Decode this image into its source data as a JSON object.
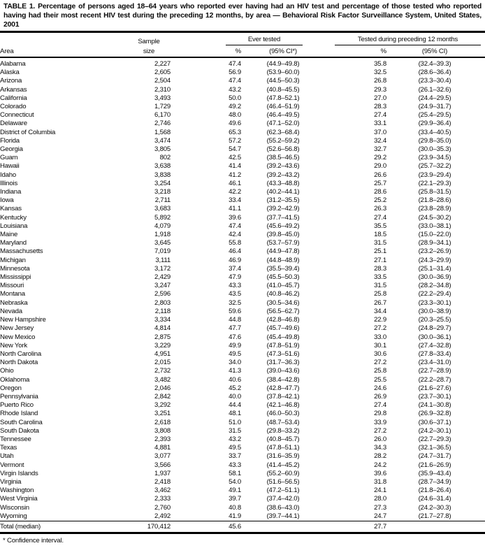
{
  "title": "TABLE 1. Percentage of persons aged 18–64 years who reported ever having had an HIV test and percentage of those tested who reported having had their most recent HIV test during the preceding 12 months, by area — Behavioral Risk Factor Surveillance System, United States, 2001",
  "footnote": "* Confidence interval.",
  "table": {
    "headers": {
      "area": "Area",
      "sample_line1": "Sample",
      "sample_line2": "size",
      "ever_tested": "Ever tested",
      "tested_12mo": "Tested during preceding 12 months",
      "pct_ever": "%",
      "ci_ever": "(95% CI*)",
      "pct_12mo": "%",
      "ci_12mo": "(95% CI)"
    },
    "rows": [
      [
        "Alabama",
        "2,227",
        "47.4",
        "(44.9–49.8)",
        "35.8",
        "(32.4–39.3)"
      ],
      [
        "Alaska",
        "2,605",
        "56.9",
        "(53.9–60.0)",
        "32.5",
        "(28.6–36.4)"
      ],
      [
        "Arizona",
        "2,504",
        "47.4",
        "(44.5–50.3)",
        "26.8",
        "(23.3–30.4)"
      ],
      [
        "Arkansas",
        "2,310",
        "43.2",
        "(40.8–45.5)",
        "29.3",
        "(26.1–32.6)"
      ],
      [
        "California",
        "3,493",
        "50.0",
        "(47.8–52.1)",
        "27.0",
        "(24.4–29.5)"
      ],
      [
        "Colorado",
        "1,729",
        "49.2",
        "(46.4–51.9)",
        "28.3",
        "(24.9–31.7)"
      ],
      [
        "Connecticut",
        "6,170",
        "48.0",
        "(46.4–49.5)",
        "27.4",
        "(25.4–29.5)"
      ],
      [
        "Delaware",
        "2,746",
        "49.6",
        "(47.1–52.0)",
        "33.1",
        "(29.9–36.4)"
      ],
      [
        "District of Columbia",
        "1,568",
        "65.3",
        "(62.3–68.4)",
        "37.0",
        "(33.4–40.5)"
      ],
      [
        "Florida",
        "3,474",
        "57.2",
        "(55.2–59.2)",
        "32.4",
        "(29.8–35.0)"
      ],
      [
        "Georgia",
        "3,805",
        "54.7",
        "(52.6–56.8)",
        "32.7",
        "(30.0–35.3)"
      ],
      [
        "Guam",
        "802",
        "42.5",
        "(38.5–46.5)",
        "29.2",
        "(23.9–34.5)"
      ],
      [
        "Hawaii",
        "3,638",
        "41.4",
        "(39.2–43.6)",
        "29.0",
        "(25.7–32.2)"
      ],
      [
        "Idaho",
        "3,838",
        "41.2",
        "(39.2–43.2)",
        "26.6",
        "(23.9–29.4)"
      ],
      [
        "Illinois",
        "3,254",
        "46.1",
        "(43.3–48.8)",
        "25.7",
        "(22.1–29.3)"
      ],
      [
        "Indiana",
        "3,218",
        "42.2",
        "(40.2–44.1)",
        "28.6",
        "(25.8–31.5)"
      ],
      [
        "Iowa",
        "2,711",
        "33.4",
        "(31.2–35.5)",
        "25.2",
        "(21.8–28.6)"
      ],
      [
        "Kansas",
        "3,683",
        "41.1",
        "(39.2–42.9)",
        "26.3",
        "(23.8–28.9)"
      ],
      [
        "Kentucky",
        "5,892",
        "39.6",
        "(37.7–41.5)",
        "27.4",
        "(24.5–30.2)"
      ],
      [
        "Louisiana",
        "4,079",
        "47.4",
        "(45.6–49.2)",
        "35.5",
        "(33.0–38.1)"
      ],
      [
        "Maine",
        "1,918",
        "42.4",
        "(39.8–45.0)",
        "18.5",
        "(15.0–22.0)"
      ],
      [
        "Maryland",
        "3,645",
        "55.8",
        "(53.7–57.9)",
        "31.5",
        "(28.9–34.1)"
      ],
      [
        "Massachusetts",
        "7,019",
        "46.4",
        "(44.9–47.8)",
        "25.1",
        "(23.2–26.9)"
      ],
      [
        "Michigan",
        "3,111",
        "46.9",
        "(44.8–48.9)",
        "27.1",
        "(24.3–29.9)"
      ],
      [
        "Minnesota",
        "3,172",
        "37.4",
        "(35.5–39.4)",
        "28.3",
        "(25.1–31.4)"
      ],
      [
        "Mississippi",
        "2,429",
        "47.9",
        "(45.5–50.3)",
        "33.5",
        "(30.0–36.9)"
      ],
      [
        "Missouri",
        "3,247",
        "43.3",
        "(41.0–45.7)",
        "31.5",
        "(28.2–34.8)"
      ],
      [
        "Montana",
        "2,596",
        "43.5",
        "(40.8–46.2)",
        "25.8",
        "(22.2–29.4)"
      ],
      [
        "Nebraska",
        "2,803",
        "32.5",
        "(30.5–34.6)",
        "26.7",
        "(23.3–30.1)"
      ],
      [
        "Nevada",
        "2,118",
        "59.6",
        "(56.5–62.7)",
        "34.4",
        "(30.0–38.9)"
      ],
      [
        "New Hampshire",
        "3,334",
        "44.8",
        "(42.8–46.8)",
        "22.9",
        "(20.3–25.5)"
      ],
      [
        "New Jersey",
        "4,814",
        "47.7",
        "(45.7–49.6)",
        "27.2",
        "(24.8–29.7)"
      ],
      [
        "New Mexico",
        "2,875",
        "47.6",
        "(45.4–49.8)",
        "33.0",
        "(30.0–36.1)"
      ],
      [
        "New York",
        "3,229",
        "49.9",
        "(47.8–51.9)",
        "30.1",
        "(27.4–32.8)"
      ],
      [
        "North Carolina",
        "4,951",
        "49.5",
        "(47.3–51.6)",
        "30.6",
        "(27.8–33.4)"
      ],
      [
        "North Dakota",
        "2,015",
        "34.0",
        "(31.7–36.3)",
        "27.2",
        "(23.4–31.0)"
      ],
      [
        "Ohio",
        "2,732",
        "41.3",
        "(39.0–43.6)",
        "25.8",
        "(22.7–28.9)"
      ],
      [
        "Oklahoma",
        "3,482",
        "40.6",
        "(38.4–42.8)",
        "25.5",
        "(22.2–28.7)"
      ],
      [
        "Oregon",
        "2,046",
        "45.2",
        "(42.8–47.7)",
        "24.6",
        "(21.6–27.6)"
      ],
      [
        "Pennsylvania",
        "2,842",
        "40.0",
        "(37.8–42.1)",
        "26.9",
        "(23.7–30.1)"
      ],
      [
        "Puerto Rico",
        "3,292",
        "44.4",
        "(42.1–46.8)",
        "27.4",
        "(24.1–30.8)"
      ],
      [
        "Rhode Island",
        "3,251",
        "48.1",
        "(46.0–50.3)",
        "29.8",
        "(26.9–32.8)"
      ],
      [
        "South Carolina",
        "2,618",
        "51.0",
        "(48.7–53.4)",
        "33.9",
        "(30.6–37.1)"
      ],
      [
        "South Dakota",
        "3,808",
        "31.5",
        "(29.8–33.2)",
        "27.2",
        "(24.2–30.1)"
      ],
      [
        "Tennessee",
        "2,393",
        "43.2",
        "(40.8–45.7)",
        "26.0",
        "(22.7–29.3)"
      ],
      [
        "Texas",
        "4,881",
        "49.5",
        "(47.8–51.1)",
        "34.3",
        "(32.1–36.5)"
      ],
      [
        "Utah",
        "3,077",
        "33.7",
        "(31.6–35.9)",
        "28.2",
        "(24.7–31.7)"
      ],
      [
        "Vermont",
        "3,566",
        "43.3",
        "(41.4–45.2)",
        "24.2",
        "(21.6–26.9)"
      ],
      [
        "Virgin Islands",
        "1,937",
        "58.1",
        "(55.2–60.9)",
        "39.6",
        "(35.9–43.4)"
      ],
      [
        "Virginia",
        "2,418",
        "54.0",
        "(51.6–56.5)",
        "31.8",
        "(28.7–34.9)"
      ],
      [
        "Washington",
        "3,462",
        "49.1",
        "(47.2–51.1)",
        "24.1",
        "(21.8–26.4)"
      ],
      [
        "West Virginia",
        "2,333",
        "39.7",
        "(37.4–42.0)",
        "28.0",
        "(24.6–31.4)"
      ],
      [
        "Wisconsin",
        "2,760",
        "40.8",
        "(38.6–43.0)",
        "27.3",
        "(24.2–30.3)"
      ],
      [
        "Wyoming",
        "2,492",
        "41.9",
        "(39.7–44.1)",
        "24.7",
        "(21.7–27.8)"
      ]
    ],
    "total_row": {
      "label": "Total (median)",
      "sample": "170,412",
      "pct_ever": "45.6",
      "ci_ever": "",
      "pct_12mo": "27.7",
      "ci_12mo": ""
    }
  }
}
